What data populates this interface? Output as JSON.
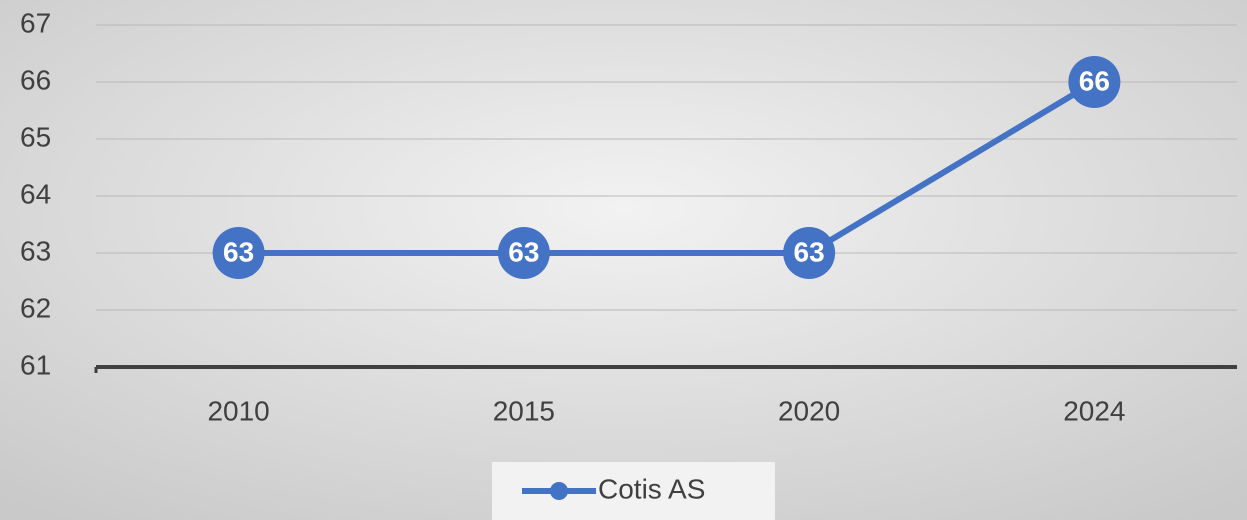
{
  "chart_data": {
    "type": "line",
    "categories": [
      "2010",
      "2015",
      "2020",
      "2024"
    ],
    "series": [
      {
        "name": "Cotis AS",
        "color": "#4472c4",
        "values": [
          63,
          63,
          63,
          66
        ]
      }
    ],
    "ylim": [
      61,
      67
    ],
    "yticks": [
      61,
      62,
      63,
      64,
      65,
      66,
      67
    ],
    "grid": true,
    "legend": "bottom"
  }
}
